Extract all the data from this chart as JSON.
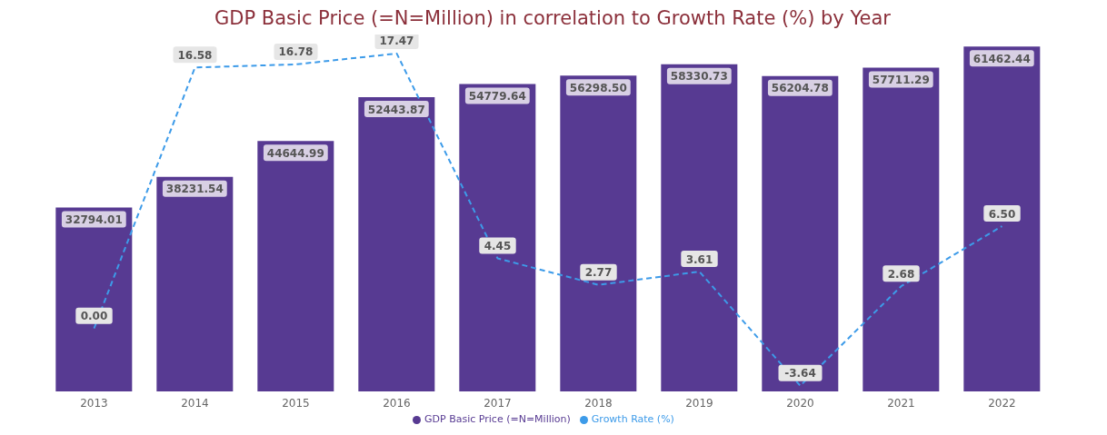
{
  "chart_data": {
    "type": "bar",
    "title": "GDP Basic Price (=N=Million) in correlation to Growth Rate (%) by Year",
    "categories": [
      "2013",
      "2014",
      "2015",
      "2016",
      "2017",
      "2018",
      "2019",
      "2020",
      "2021",
      "2022"
    ],
    "series": [
      {
        "name": "GDP Basic Price (=N=Million)",
        "color": "#573a92",
        "values": [
          32794.01,
          38231.54,
          44644.99,
          52443.87,
          54779.64,
          56298.5,
          58330.73,
          56204.78,
          57711.29,
          61462.44
        ],
        "value_labels": [
          "32794.01",
          "38231.54",
          "44644.99",
          "52443.87",
          "54779.64",
          "56298.50",
          "58330.73",
          "56204.78",
          "57711.29",
          "61462.44"
        ]
      },
      {
        "name": "Growth Rate (%)",
        "type": "line",
        "axis": "y2",
        "color": "#3d9be9",
        "line_style": "dashed",
        "values": [
          0.0,
          16.58,
          16.78,
          17.47,
          4.45,
          2.77,
          3.61,
          -3.64,
          2.68,
          6.5
        ],
        "value_labels": [
          "0.00",
          "16.58",
          "16.78",
          "17.47",
          "4.45",
          "2.77",
          "3.61",
          "-3.64",
          "2.68",
          "6.50"
        ]
      }
    ],
    "ylim": [
      0,
      62000
    ],
    "y2lim": [
      -4,
      18.1
    ],
    "tick_labels": "x",
    "legend": "bottom",
    "marker": "none"
  }
}
